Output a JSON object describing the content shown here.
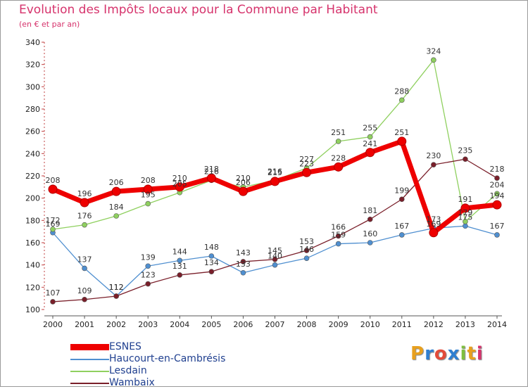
{
  "header": {
    "title": "Evolution des Impôts locaux pour la Commune par Habitant",
    "subtitle": "(en € et par an)"
  },
  "logo": {
    "text": "Proxiti",
    "colors": [
      "#e8a01e",
      "#2f7fd1",
      "#e34b3a",
      "#2f7fd1",
      "#7fbf3f",
      "#e8a01e",
      "#d6336c"
    ]
  },
  "chart_data": {
    "type": "line",
    "x": [
      "2000",
      "2001",
      "2002",
      "2003",
      "2004",
      "2005",
      "2006",
      "2007",
      "2008",
      "2009",
      "2010",
      "2011",
      "2012",
      "2013",
      "2014"
    ],
    "ylim": [
      100,
      340
    ],
    "yticks": [
      100,
      120,
      140,
      160,
      180,
      200,
      220,
      240,
      260,
      280,
      300,
      320,
      340
    ],
    "grid": false,
    "legend_position": "bottom-left",
    "series": [
      {
        "name": "Haucourt-en-Cambrésis",
        "color": "#4f8fd0",
        "values": [
          169,
          137,
          112,
          139,
          144,
          148,
          133,
          140,
          146,
          159,
          160,
          167,
          173,
          175,
          167
        ],
        "labels": [
          "169",
          "137",
          "112",
          "139",
          "144",
          "148",
          "133",
          "140",
          "146",
          "159",
          "160",
          "167",
          "173",
          "175",
          "167"
        ]
      },
      {
        "name": "Lesdain",
        "color": "#8fd05f",
        "values": [
          172,
          176,
          184,
          195,
          205,
          216,
          210,
          216,
          227,
          251,
          255,
          288,
          324,
          179,
          204
        ],
        "labels": [
          "172",
          "176",
          "184",
          "195",
          "205",
          "216",
          "210",
          "216",
          "227",
          "251",
          "255",
          "288",
          "324",
          "179",
          "204"
        ]
      },
      {
        "name": "Wambaix",
        "color": "#7a1f2a",
        "values": [
          107,
          109,
          112,
          123,
          131,
          134,
          143,
          145,
          153,
          166,
          181,
          199,
          230,
          235,
          218
        ],
        "labels": [
          "107",
          "109",
          "112",
          "123",
          "131",
          "134",
          "143",
          "145",
          "153",
          "166",
          "181",
          "199",
          "230",
          "235",
          "218"
        ]
      },
      {
        "name": "ESNES",
        "color": "#ee0000",
        "values": [
          208,
          196,
          206,
          208,
          210,
          218,
          206,
          215,
          223,
          228,
          241,
          251,
          169,
          191,
          194
        ],
        "labels": [
          "208",
          "196",
          "206",
          "208",
          "210",
          "218",
          "206",
          "215",
          "223",
          "228",
          "241",
          "251",
          "169",
          "191",
          "194"
        ]
      }
    ]
  },
  "legend": {
    "items": [
      {
        "label": "ESNES",
        "color": "#ee0000",
        "thickness": 9
      },
      {
        "label": "Haucourt-en-Cambrésis",
        "color": "#4f8fd0",
        "thickness": 2
      },
      {
        "label": "Lesdain",
        "color": "#8fd05f",
        "thickness": 2
      },
      {
        "label": "Wambaix",
        "color": "#7a1f2a",
        "thickness": 2
      }
    ]
  }
}
